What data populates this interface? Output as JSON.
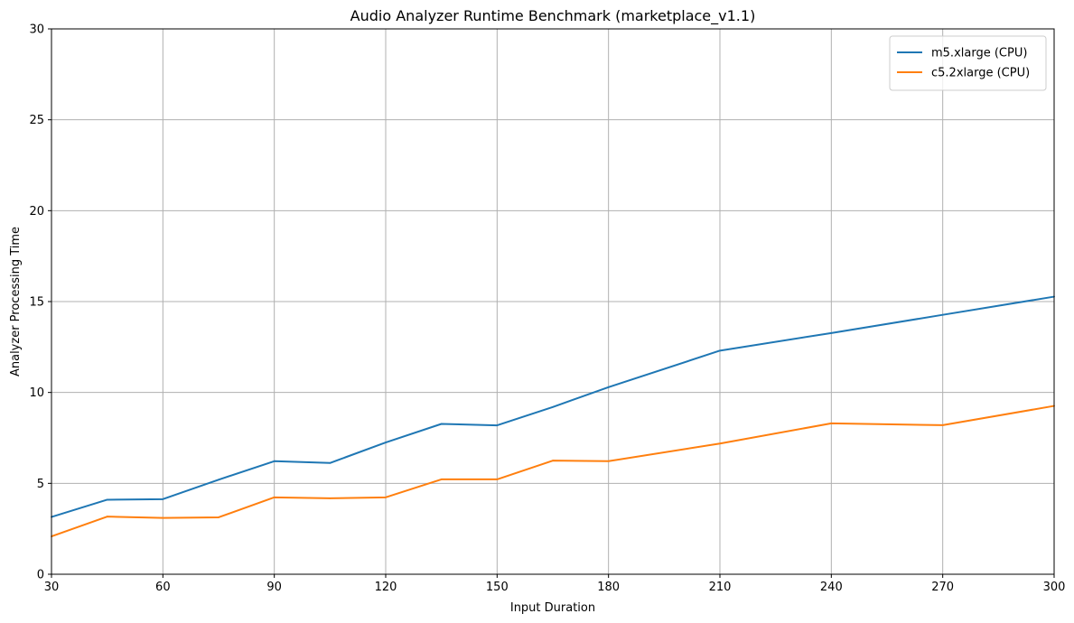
{
  "chart_data": {
    "type": "line",
    "title": "Audio Analyzer Runtime Benchmark (marketplace_v1.1)",
    "xlabel": "Input Duration",
    "ylabel": "Analyzer Processing Time",
    "xlim": [
      30,
      300
    ],
    "ylim": [
      0,
      30
    ],
    "xticks": [
      30,
      60,
      90,
      120,
      150,
      180,
      210,
      240,
      270,
      300
    ],
    "yticks": [
      0,
      5,
      10,
      15,
      20,
      25,
      30
    ],
    "grid": true,
    "legend_position": "top-right",
    "series": [
      {
        "name": "m5.xlarge (CPU)",
        "color": "#1f77b4",
        "x": [
          30,
          45,
          60,
          75,
          90,
          105,
          120,
          135,
          150,
          165,
          180,
          210,
          240,
          270,
          300
        ],
        "y": [
          3.15,
          4.1,
          4.13,
          5.2,
          6.22,
          6.12,
          7.25,
          8.27,
          8.19,
          9.2,
          10.29,
          12.3,
          13.27,
          14.27,
          15.27
        ]
      },
      {
        "name": "c5.2xlarge (CPU)",
        "color": "#ff7f0e",
        "x": [
          30,
          45,
          60,
          75,
          90,
          105,
          120,
          135,
          150,
          165,
          180,
          210,
          240,
          270,
          300
        ],
        "y": [
          2.08,
          3.17,
          3.1,
          3.13,
          4.23,
          4.18,
          4.23,
          5.22,
          5.22,
          6.25,
          6.22,
          7.19,
          8.3,
          8.2,
          9.26
        ]
      }
    ]
  }
}
